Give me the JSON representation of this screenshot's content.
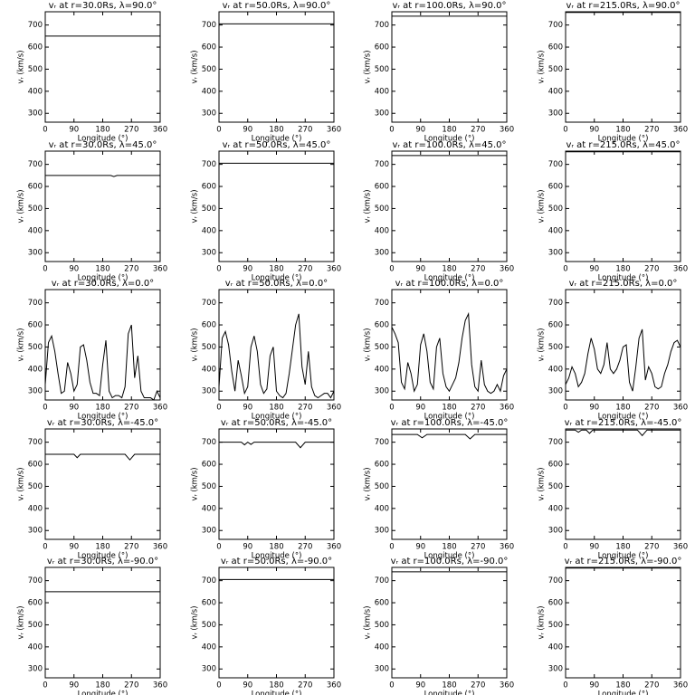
{
  "chart_data": [
    {
      "type": "line",
      "title": "vᵣ at r=30.0Rs,  λ=90.0°",
      "xlabel": "Longitude (°)",
      "ylabel": "vᵣ (km/s)",
      "xlim": [
        0,
        360
      ],
      "ylim": [
        260,
        760
      ],
      "xticks": [
        0,
        90,
        180,
        270,
        360
      ],
      "yticks": [
        300,
        400,
        500,
        600,
        700
      ],
      "color": "#000000",
      "x": [
        0,
        360
      ],
      "values": [
        650,
        650
      ]
    },
    {
      "type": "line",
      "title": "vᵣ at r=50.0Rs,  λ=90.0°",
      "xlabel": "Longitude (°)",
      "ylabel": "vᵣ (km/s)",
      "xlim": [
        0,
        360
      ],
      "ylim": [
        260,
        760
      ],
      "xticks": [
        0,
        90,
        180,
        270,
        360
      ],
      "yticks": [
        300,
        400,
        500,
        600,
        700
      ],
      "color": "#000000",
      "x": [
        0,
        360
      ],
      "values": [
        705,
        705
      ]
    },
    {
      "type": "line",
      "title": "vᵣ at r=100.0Rs,  λ=90.0°",
      "xlabel": "Longitude (°)",
      "ylabel": "vᵣ (km/s)",
      "xlim": [
        0,
        360
      ],
      "ylim": [
        260,
        760
      ],
      "xticks": [
        0,
        90,
        180,
        270,
        360
      ],
      "yticks": [
        300,
        400,
        500,
        600,
        700
      ],
      "color": "#000000",
      "x": [
        0,
        360
      ],
      "values": [
        740,
        740
      ]
    },
    {
      "type": "line",
      "title": "vᵣ at r=215.0Rs,  λ=90.0°",
      "xlabel": "Longitude (°)",
      "ylabel": "vᵣ (km/s)",
      "xlim": [
        0,
        360
      ],
      "ylim": [
        260,
        760
      ],
      "xticks": [
        0,
        90,
        180,
        270,
        360
      ],
      "yticks": [
        300,
        400,
        500,
        600,
        700
      ],
      "color": "#000000",
      "x": [
        0,
        360
      ],
      "values": [
        757,
        757
      ]
    },
    {
      "type": "line",
      "title": "vᵣ at r=30.0Rs,  λ=45.0°",
      "xlabel": "Longitude (°)",
      "ylabel": "vᵣ (km/s)",
      "xlim": [
        0,
        360
      ],
      "ylim": [
        260,
        760
      ],
      "xticks": [
        0,
        90,
        180,
        270,
        360
      ],
      "yticks": [
        300,
        400,
        500,
        600,
        700
      ],
      "color": "#000000",
      "x": [
        0,
        205,
        215,
        225,
        360
      ],
      "values": [
        650,
        650,
        645,
        650,
        650
      ]
    },
    {
      "type": "line",
      "title": "vᵣ at r=50.0Rs,  λ=45.0°",
      "xlabel": "Longitude (°)",
      "ylabel": "vᵣ (km/s)",
      "xlim": [
        0,
        360
      ],
      "ylim": [
        260,
        760
      ],
      "xticks": [
        0,
        90,
        180,
        270,
        360
      ],
      "yticks": [
        300,
        400,
        500,
        600,
        700
      ],
      "color": "#000000",
      "x": [
        0,
        360
      ],
      "values": [
        705,
        705
      ]
    },
    {
      "type": "line",
      "title": "vᵣ at r=100.0Rs,  λ=45.0°",
      "xlabel": "Longitude (°)",
      "ylabel": "vᵣ (km/s)",
      "xlim": [
        0,
        360
      ],
      "ylim": [
        260,
        760
      ],
      "xticks": [
        0,
        90,
        180,
        270,
        360
      ],
      "yticks": [
        300,
        400,
        500,
        600,
        700
      ],
      "color": "#000000",
      "x": [
        0,
        360
      ],
      "values": [
        740,
        740
      ]
    },
    {
      "type": "line",
      "title": "vᵣ at r=215.0Rs,  λ=45.0°",
      "xlabel": "Longitude (°)",
      "ylabel": "vᵣ (km/s)",
      "xlim": [
        0,
        360
      ],
      "ylim": [
        260,
        760
      ],
      "xticks": [
        0,
        90,
        180,
        270,
        360
      ],
      "yticks": [
        300,
        400,
        500,
        600,
        700
      ],
      "color": "#000000",
      "x": [
        0,
        360
      ],
      "values": [
        757,
        757
      ]
    },
    {
      "type": "line",
      "title": "vᵣ at r=30.0Rs,  λ=0.0°",
      "xlabel": "Longitude (°)",
      "ylabel": "vᵣ (km/s)",
      "xlim": [
        0,
        360
      ],
      "ylim": [
        260,
        760
      ],
      "xticks": [
        0,
        90,
        180,
        270,
        360
      ],
      "yticks": [
        300,
        400,
        500,
        600,
        700
      ],
      "color": "#000000",
      "x": [
        0,
        10,
        20,
        30,
        40,
        50,
        60,
        70,
        80,
        90,
        100,
        110,
        120,
        130,
        140,
        150,
        160,
        170,
        180,
        190,
        200,
        210,
        220,
        230,
        240,
        250,
        260,
        270,
        280,
        290,
        300,
        310,
        320,
        330,
        340,
        350,
        360
      ],
      "values": [
        330,
        520,
        550,
        480,
        380,
        290,
        300,
        430,
        380,
        300,
        330,
        500,
        510,
        440,
        340,
        290,
        290,
        280,
        420,
        530,
        300,
        270,
        280,
        280,
        270,
        320,
        560,
        600,
        360,
        460,
        300,
        270,
        270,
        270,
        260,
        300,
        270
      ]
    },
    {
      "type": "line",
      "title": "vᵣ at r=50.0Rs,  λ=0.0°",
      "xlabel": "Longitude (°)",
      "ylabel": "vᵣ (km/s)",
      "xlim": [
        0,
        360
      ],
      "ylim": [
        260,
        760
      ],
      "xticks": [
        0,
        90,
        180,
        270,
        360
      ],
      "yticks": [
        300,
        400,
        500,
        600,
        700
      ],
      "color": "#000000",
      "x": [
        0,
        10,
        20,
        30,
        40,
        50,
        60,
        70,
        80,
        90,
        100,
        110,
        120,
        130,
        140,
        150,
        160,
        170,
        180,
        190,
        200,
        210,
        220,
        230,
        240,
        250,
        260,
        270,
        280,
        290,
        300,
        310,
        320,
        330,
        340,
        350,
        360
      ],
      "values": [
        320,
        540,
        570,
        510,
        390,
        300,
        440,
        370,
        290,
        320,
        500,
        550,
        480,
        330,
        290,
        310,
        460,
        500,
        300,
        280,
        270,
        290,
        380,
        490,
        600,
        650,
        410,
        330,
        480,
        320,
        280,
        270,
        280,
        290,
        290,
        270,
        300
      ]
    },
    {
      "type": "line",
      "title": "vᵣ at r=100.0Rs,  λ=0.0°",
      "xlabel": "Longitude (°)",
      "ylabel": "vᵣ (km/s)",
      "xlim": [
        0,
        360
      ],
      "ylim": [
        260,
        760
      ],
      "xticks": [
        0,
        90,
        180,
        270,
        360
      ],
      "yticks": [
        300,
        400,
        500,
        600,
        700
      ],
      "color": "#000000",
      "x": [
        0,
        10,
        20,
        30,
        40,
        50,
        60,
        70,
        80,
        90,
        100,
        110,
        120,
        130,
        140,
        150,
        160,
        170,
        180,
        190,
        200,
        210,
        220,
        230,
        240,
        250,
        260,
        270,
        280,
        290,
        300,
        310,
        320,
        330,
        340,
        350,
        360
      ],
      "values": [
        590,
        560,
        520,
        340,
        310,
        430,
        380,
        300,
        330,
        510,
        560,
        480,
        340,
        310,
        500,
        540,
        380,
        320,
        300,
        330,
        360,
        430,
        540,
        620,
        650,
        420,
        320,
        300,
        440,
        330,
        300,
        290,
        300,
        330,
        300,
        370,
        400
      ]
    },
    {
      "type": "line",
      "title": "vᵣ at r=215.0Rs,  λ=0.0°",
      "xlabel": "Longitude (°)",
      "ylabel": "vᵣ (km/s)",
      "xlim": [
        0,
        360
      ],
      "ylim": [
        260,
        760
      ],
      "xticks": [
        0,
        90,
        180,
        270,
        360
      ],
      "yticks": [
        300,
        400,
        500,
        600,
        700
      ],
      "color": "#000000",
      "x": [
        0,
        10,
        20,
        30,
        40,
        50,
        60,
        70,
        80,
        90,
        100,
        110,
        120,
        130,
        140,
        150,
        160,
        170,
        180,
        190,
        200,
        210,
        220,
        230,
        240,
        250,
        260,
        270,
        280,
        290,
        300,
        310,
        320,
        330,
        340,
        350,
        360
      ],
      "values": [
        330,
        360,
        410,
        380,
        320,
        340,
        380,
        470,
        540,
        490,
        400,
        380,
        420,
        520,
        400,
        380,
        400,
        440,
        500,
        510,
        340,
        300,
        410,
        540,
        580,
        350,
        410,
        380,
        320,
        310,
        320,
        380,
        420,
        480,
        520,
        530,
        500
      ]
    },
    {
      "type": "line",
      "title": "vᵣ at r=30.0Rs,  λ=-45.0°",
      "xlabel": "Longitude (°)",
      "ylabel": "vᵣ (km/s)",
      "xlim": [
        0,
        360
      ],
      "ylim": [
        260,
        760
      ],
      "xticks": [
        0,
        90,
        180,
        270,
        360
      ],
      "yticks": [
        300,
        400,
        500,
        600,
        700
      ],
      "color": "#000000",
      "x": [
        0,
        90,
        100,
        110,
        250,
        265,
        280,
        360
      ],
      "values": [
        645,
        645,
        630,
        645,
        645,
        620,
        645,
        645
      ]
    },
    {
      "type": "line",
      "title": "vᵣ at r=50.0Rs,  λ=-45.0°",
      "xlabel": "Longitude (°)",
      "ylabel": "vᵣ (km/s)",
      "xlim": [
        0,
        360
      ],
      "ylim": [
        260,
        760
      ],
      "xticks": [
        0,
        90,
        180,
        270,
        360
      ],
      "yticks": [
        300,
        400,
        500,
        600,
        700
      ],
      "color": "#000000",
      "x": [
        0,
        70,
        80,
        90,
        100,
        110,
        240,
        255,
        270,
        360
      ],
      "values": [
        700,
        700,
        688,
        700,
        690,
        700,
        700,
        675,
        700,
        700
      ]
    },
    {
      "type": "line",
      "title": "vᵣ at r=100.0Rs,  λ=-45.0°",
      "xlabel": "Longitude (°)",
      "ylabel": "vᵣ (km/s)",
      "xlim": [
        0,
        360
      ],
      "ylim": [
        260,
        760
      ],
      "xticks": [
        0,
        90,
        180,
        270,
        360
      ],
      "yticks": [
        300,
        400,
        500,
        600,
        700
      ],
      "color": "#000000",
      "x": [
        0,
        80,
        95,
        110,
        230,
        245,
        260,
        360
      ],
      "values": [
        735,
        735,
        720,
        735,
        735,
        715,
        735,
        735
      ]
    },
    {
      "type": "line",
      "title": "vᵣ at r=215.0Rs,  λ=-45.0°",
      "xlabel": "Longitude (°)",
      "ylabel": "vᵣ (km/s)",
      "xlim": [
        0,
        360
      ],
      "ylim": [
        260,
        760
      ],
      "xticks": [
        0,
        90,
        180,
        270,
        360
      ],
      "yticks": [
        300,
        400,
        500,
        600,
        700
      ],
      "color": "#000000",
      "x": [
        0,
        30,
        40,
        50,
        65,
        75,
        85,
        225,
        240,
        255,
        360
      ],
      "values": [
        755,
        755,
        745,
        755,
        755,
        740,
        755,
        755,
        730,
        755,
        755
      ]
    },
    {
      "type": "line",
      "title": "vᵣ at r=30.0Rs,  λ=-90.0°",
      "xlabel": "Longitude (°)",
      "ylabel": "vᵣ (km/s)",
      "xlim": [
        0,
        360
      ],
      "ylim": [
        260,
        760
      ],
      "xticks": [
        0,
        90,
        180,
        270,
        360
      ],
      "yticks": [
        300,
        400,
        500,
        600,
        700
      ],
      "color": "#000000",
      "x": [
        0,
        360
      ],
      "values": [
        650,
        650
      ]
    },
    {
      "type": "line",
      "title": "vᵣ at r=50.0Rs,  λ=-90.0°",
      "xlabel": "Longitude (°)",
      "ylabel": "vᵣ (km/s)",
      "xlim": [
        0,
        360
      ],
      "ylim": [
        260,
        760
      ],
      "xticks": [
        0,
        90,
        180,
        270,
        360
      ],
      "yticks": [
        300,
        400,
        500,
        600,
        700
      ],
      "color": "#000000",
      "x": [
        0,
        360
      ],
      "values": [
        705,
        705
      ]
    },
    {
      "type": "line",
      "title": "vᵣ at r=100.0Rs,  λ=-90.0°",
      "xlabel": "Longitude (°)",
      "ylabel": "vᵣ (km/s)",
      "xlim": [
        0,
        360
      ],
      "ylim": [
        260,
        760
      ],
      "xticks": [
        0,
        90,
        180,
        270,
        360
      ],
      "yticks": [
        300,
        400,
        500,
        600,
        700
      ],
      "color": "#000000",
      "x": [
        0,
        360
      ],
      "values": [
        740,
        740
      ]
    },
    {
      "type": "line",
      "title": "vᵣ at r=215.0Rs,  λ=-90.0°",
      "xlabel": "Longitude (°)",
      "ylabel": "vᵣ (km/s)",
      "xlim": [
        0,
        360
      ],
      "ylim": [
        260,
        760
      ],
      "xticks": [
        0,
        90,
        180,
        270,
        360
      ],
      "yticks": [
        300,
        400,
        500,
        600,
        700
      ],
      "color": "#000000",
      "x": [
        0,
        360
      ],
      "values": [
        757,
        757
      ]
    }
  ]
}
